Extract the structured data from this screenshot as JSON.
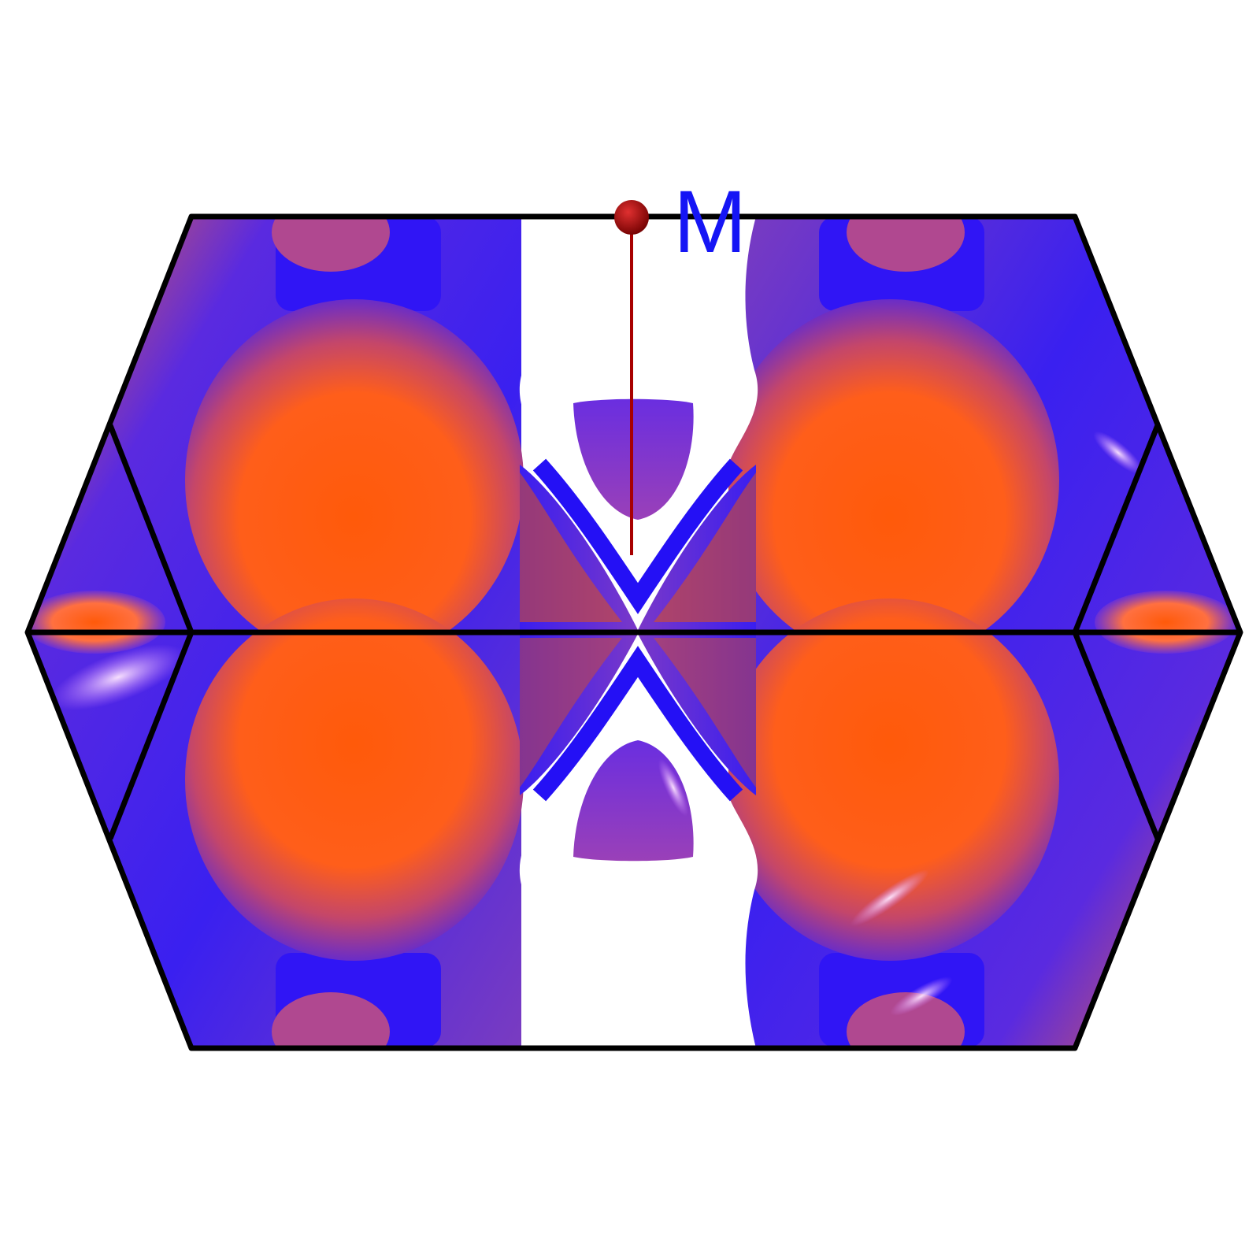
{
  "figure": {
    "description_type": "fermi-surface-brillouin-zone",
    "high_symmetry_point": {
      "label": "M",
      "marker_color": "#b00000",
      "label_color": "#1515f5"
    },
    "colors": {
      "zone_edge": "#000000",
      "surface_orange": "#ff5a10",
      "surface_blue": "#2a1cf0",
      "surface_purple": "#8a3fb0",
      "highlight": "#f0c8ff",
      "background": "#ffffff"
    }
  }
}
